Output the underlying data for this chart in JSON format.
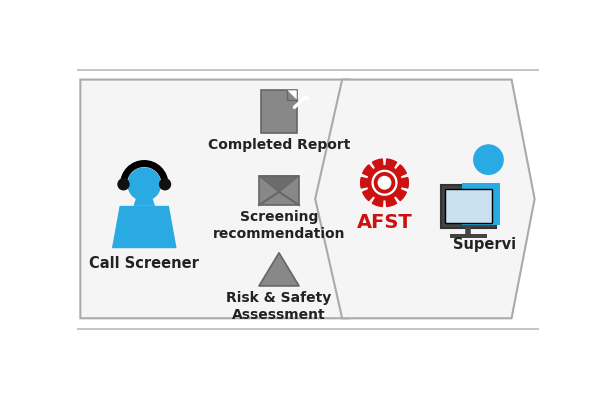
{
  "bg_color": "#ffffff",
  "border_color": "#bbbbbb",
  "chevron_fill": "#f5f5f5",
  "chevron_edge": "#aaaaaa",
  "blue_color": "#29aae2",
  "dark_color": "#222222",
  "red_color": "#cc1111",
  "gray_icon": "#888888",
  "gray_dark": "#666666",
  "left_label": "Call Screener",
  "right_label": "Supervi",
  "afst_label": "AFST",
  "item1": "Completed Report",
  "item2": "Screening\nrecommendation",
  "item3": "Risk & Safety\nAssessment",
  "figsize": [
    6.0,
    4.0
  ],
  "dpi": 100
}
